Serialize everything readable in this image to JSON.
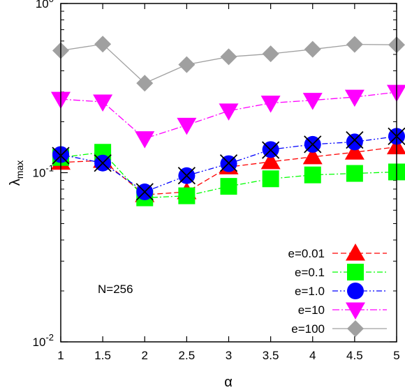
{
  "chart_data": {
    "type": "line",
    "xlabel": "α",
    "ylabel": {
      "base": "λ",
      "sub": "max"
    },
    "xlim": [
      1,
      5
    ],
    "ylim": [
      0.01,
      1
    ],
    "yscale": "log",
    "x_ticks": [
      "1",
      "1.5",
      "2",
      "2.5",
      "3",
      "3.5",
      "4",
      "4.5",
      "5"
    ],
    "y_ticks": [
      {
        "value": 0.01,
        "base": "10",
        "exp": "-2"
      },
      {
        "value": 0.1,
        "base": "10",
        "exp": "-1"
      },
      {
        "value": 1,
        "base": "10",
        "exp": "0"
      }
    ],
    "annotation": "N=256",
    "legend_position": "bottom-right",
    "x": [
      1,
      1.5,
      2,
      2.5,
      3,
      3.5,
      4,
      4.5,
      5
    ],
    "series": [
      {
        "name": "e=0.01",
        "color": "#ff0000",
        "marker": "triangle-up",
        "dash": "dashed",
        "values": [
          0.115,
          0.118,
          0.074,
          0.077,
          0.108,
          0.116,
          0.124,
          0.132,
          0.142
        ]
      },
      {
        "name": "e=0.1",
        "color": "#00ff00",
        "marker": "square",
        "dash": "dash-dot",
        "values": [
          0.123,
          0.132,
          0.071,
          0.073,
          0.083,
          0.092,
          0.097,
          0.099,
          0.101
        ]
      },
      {
        "name": "e=1.0",
        "color": "#0000ff",
        "marker": "circle",
        "dash": "dash-dot-dot",
        "values": [
          0.128,
          0.114,
          0.077,
          0.096,
          0.113,
          0.137,
          0.147,
          0.152,
          0.164
        ]
      },
      {
        "name": "e=10",
        "color": "#ff00ff",
        "marker": "triangle-down",
        "dash": "dash-dot-long",
        "values": [
          0.272,
          0.262,
          0.159,
          0.191,
          0.232,
          0.258,
          0.268,
          0.28,
          0.299
        ]
      },
      {
        "name": "e=100",
        "color": "#a0a0a0",
        "marker": "diamond",
        "dash": "solid",
        "values": [
          0.527,
          0.575,
          0.338,
          0.435,
          0.484,
          0.504,
          0.536,
          0.573,
          0.57
        ]
      }
    ],
    "extra_markers": {
      "name": "cross",
      "color": "#000000",
      "values": [
        0.126,
        0.114,
        0.077,
        0.096,
        0.114,
        0.136,
        0.147,
        0.156,
        0.164
      ]
    }
  }
}
